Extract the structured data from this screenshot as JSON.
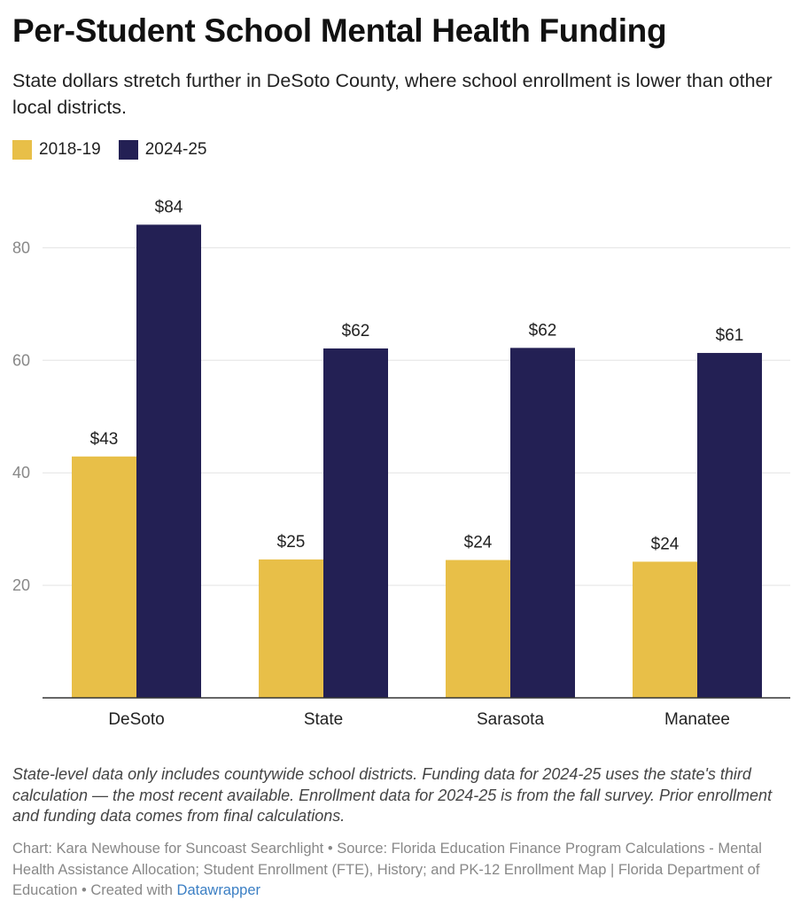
{
  "title": "Per-Student School Mental Health Funding",
  "subtitle": "State dollars stretch further in DeSoto County, where school enrollment is lower than other local districts.",
  "colors": {
    "series_2018": "#e8bf48",
    "series_2024": "#232054",
    "grid": "#e3e3e3",
    "axis": "#333333",
    "link": "#3b7fc4"
  },
  "chart_data": {
    "type": "bar",
    "title": "Per-Student School Mental Health Funding",
    "xlabel": "",
    "ylabel": "",
    "ylim": [
      0,
      100
    ],
    "yticks": [
      20,
      40,
      60,
      80
    ],
    "grid": true,
    "legend_position": "top-left",
    "categories": [
      "DeSoto",
      "State",
      "Sarasota",
      "Manatee"
    ],
    "series": [
      {
        "name": "2018-19",
        "color": "#e8bf48",
        "values": [
          42.9,
          24.6,
          24.5,
          24.2
        ],
        "labels": [
          "$43",
          "$25",
          "$24",
          "$24"
        ]
      },
      {
        "name": "2024-25",
        "color": "#232054",
        "values": [
          84.1,
          62.1,
          62.2,
          61.3
        ],
        "labels": [
          "$84",
          "$62",
          "$62",
          "$61"
        ]
      }
    ]
  },
  "notes": "State-level data only includes countywide school districts. Funding data for 2024-25 uses the state's third calculation — the most recent available. Enrollment data for 2024-25 is from the fall survey. Prior enrollment and funding data comes from final calculations.",
  "credits": {
    "text": "Chart: Kara Newhouse for Suncoast Searchlight • Source: Florida Education Finance Program Calculations - Mental Health Assistance Allocation; Student Enrollment (FTE), History; and PK-12 Enrollment Map | Florida Department of Education • Created with ",
    "link_label": "Datawrapper"
  }
}
